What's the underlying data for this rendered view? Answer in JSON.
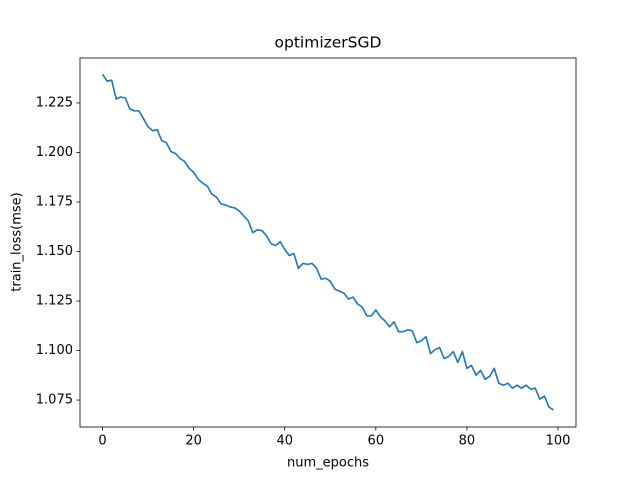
{
  "chart_data": {
    "type": "line",
    "title": "optimizerSGD",
    "x_label": "num_epochs",
    "y_label": "train_loss(mse)",
    "x": [
      0,
      1,
      2,
      3,
      4,
      5,
      6,
      7,
      8,
      9,
      10,
      11,
      12,
      13,
      14,
      15,
      16,
      17,
      18,
      19,
      20,
      21,
      22,
      23,
      24,
      25,
      26,
      27,
      28,
      29,
      30,
      31,
      32,
      33,
      34,
      35,
      36,
      37,
      38,
      39,
      40,
      41,
      42,
      43,
      44,
      45,
      46,
      47,
      48,
      49,
      50,
      51,
      52,
      53,
      54,
      55,
      56,
      57,
      58,
      59,
      60,
      61,
      62,
      63,
      64,
      65,
      66,
      67,
      68,
      69,
      70,
      71,
      72,
      73,
      74,
      75,
      76,
      77,
      78,
      79,
      80,
      81,
      82,
      83,
      84,
      85,
      86,
      87,
      88,
      89,
      90,
      91,
      92,
      93,
      94,
      95,
      96,
      97,
      98,
      99
    ],
    "series": [
      {
        "color": "#1f77b4",
        "values": [
          1.2395,
          1.236,
          1.2365,
          1.227,
          1.228,
          1.2275,
          1.222,
          1.221,
          1.221,
          1.217,
          1.213,
          1.211,
          1.2115,
          1.206,
          1.205,
          1.2005,
          1.1995,
          1.197,
          1.1955,
          1.192,
          1.19,
          1.1865,
          1.1845,
          1.183,
          1.179,
          1.1775,
          1.174,
          1.1735,
          1.1725,
          1.172,
          1.1705,
          1.168,
          1.1655,
          1.1595,
          1.161,
          1.1605,
          1.158,
          1.154,
          1.153,
          1.155,
          1.151,
          1.148,
          1.149,
          1.1415,
          1.144,
          1.1435,
          1.144,
          1.1415,
          1.136,
          1.1365,
          1.135,
          1.131,
          1.13,
          1.129,
          1.126,
          1.127,
          1.1235,
          1.122,
          1.1175,
          1.1175,
          1.1205,
          1.117,
          1.115,
          1.112,
          1.1145,
          1.1095,
          1.1095,
          1.1105,
          1.11,
          1.104,
          1.105,
          1.107,
          1.0985,
          1.1005,
          1.1015,
          1.096,
          1.097,
          1.0995,
          1.094,
          1.0995,
          1.091,
          1.0925,
          1.0875,
          1.09,
          1.0855,
          1.087,
          1.091,
          1.0835,
          1.0825,
          1.0835,
          1.081,
          1.0825,
          1.081,
          1.0825,
          1.0805,
          1.081,
          1.0755,
          1.077,
          1.0715,
          1.07
        ]
      }
    ],
    "xlim": [
      -4.95,
      103.95
    ],
    "ylim": [
      1.0614,
      1.2477
    ],
    "xticks": [
      0,
      20,
      40,
      60,
      80,
      100
    ],
    "yticks": [
      1.075,
      {
        "value": 1.1,
        "label": "1.100"
      },
      1.125,
      {
        "value": 1.15,
        "label": "1.150"
      },
      1.175,
      {
        "value": 1.2,
        "label": "1.200"
      },
      1.225
    ]
  }
}
